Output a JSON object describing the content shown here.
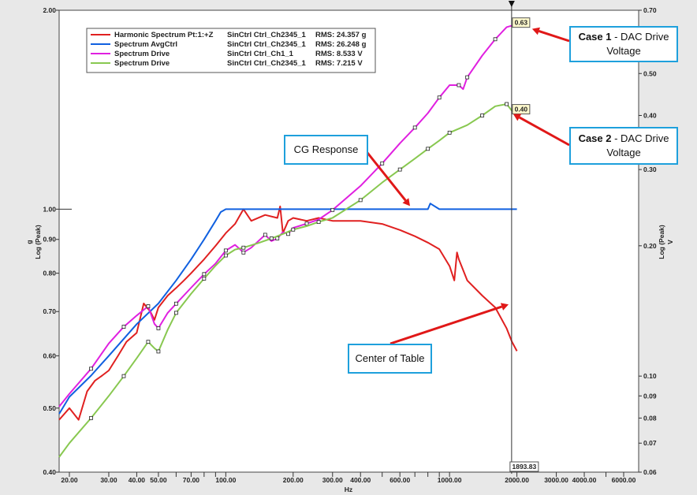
{
  "chart_data": {
    "type": "line",
    "xlabel": "Hz",
    "ylabel": [
      "g",
      "Log (Peak)"
    ],
    "y2label": [
      "Log (Peak)",
      "V"
    ],
    "x_scale": "log",
    "y_scale": "log",
    "xlim": [
      18,
      7000
    ],
    "ylim": [
      0.4,
      2.0
    ],
    "y2lim": [
      0.06,
      0.7
    ],
    "x_ticks": [
      20,
      30,
      40,
      50,
      60,
      70,
      80,
      90,
      100,
      200,
      300,
      400,
      500,
      600,
      700,
      800,
      900,
      1000,
      2000,
      3000,
      4000,
      5000,
      6000
    ],
    "x_tick_labels": [
      {
        "value": 20,
        "label": "20.00"
      },
      {
        "value": 30,
        "label": "30.00"
      },
      {
        "value": 40,
        "label": "40.00"
      },
      {
        "value": 50,
        "label": "50.00"
      },
      {
        "value": 70,
        "label": "70.00"
      },
      {
        "value": 100,
        "label": "100.00"
      },
      {
        "value": 200,
        "label": "200.00"
      },
      {
        "value": 300,
        "label": "300.00"
      },
      {
        "value": 400,
        "label": "400.00"
      },
      {
        "value": 600,
        "label": "600.00"
      },
      {
        "value": 1000,
        "label": "1000.00"
      },
      {
        "value": 2000,
        "label": "2000.00"
      },
      {
        "value": 3000,
        "label": "3000.00"
      },
      {
        "value": 4000,
        "label": "4000.00"
      },
      {
        "value": 6000,
        "label": "6000.00"
      }
    ],
    "y_tick_labels": [
      {
        "value": 2.0,
        "label": "2.00"
      },
      {
        "value": 1.0,
        "label": "1.00"
      },
      {
        "value": 0.9,
        "label": "0.90"
      },
      {
        "value": 0.8,
        "label": "0.80"
      },
      {
        "value": 0.7,
        "label": "0.70"
      },
      {
        "value": 0.6,
        "label": "0.60"
      },
      {
        "value": 0.5,
        "label": "0.50"
      },
      {
        "value": 0.4,
        "label": "0.40"
      }
    ],
    "y2_tick_labels": [
      {
        "value": 0.7,
        "label": "0.70"
      },
      {
        "value": 0.5,
        "label": "0.50"
      },
      {
        "value": 0.4,
        "label": "0.40"
      },
      {
        "value": 0.3,
        "label": "0.30"
      },
      {
        "value": 0.2,
        "label": "0.20"
      },
      {
        "value": 0.1,
        "label": "0.10"
      },
      {
        "value": 0.09,
        "label": "0.09"
      },
      {
        "value": 0.08,
        "label": "0.08"
      },
      {
        "value": 0.07,
        "label": "0.07"
      },
      {
        "value": 0.06,
        "label": "0.06"
      }
    ],
    "grid": false,
    "cursor": {
      "x": 1893.83,
      "label": "1893.83"
    },
    "cursor_values": [
      {
        "label": "0.63",
        "series": "Spectrum Drive (Ch1_1)"
      },
      {
        "label": "0.40",
        "series": "Spectrum Drive (Ch2345_1)"
      }
    ],
    "legend_position": "top-left",
    "series": [
      {
        "name": "Harmonic Spectrum Pt:1:+Z",
        "channel": "SinCtrl Ctrl_Ch2345_1",
        "rms": "RMS: 24.357 g",
        "color": "#e02020",
        "axis": "left",
        "x": [
          18,
          20,
          22,
          24,
          26,
          28,
          30,
          33,
          36,
          40,
          43,
          46,
          48,
          50,
          55,
          60,
          65,
          70,
          80,
          90,
          100,
          110,
          120,
          130,
          150,
          170,
          175,
          180,
          190,
          200,
          230,
          260,
          300,
          350,
          400,
          500,
          600,
          700,
          800,
          900,
          1000,
          1050,
          1080,
          1100,
          1200,
          1400,
          1600,
          1800,
          1900,
          2000
        ],
        "y": [
          0.48,
          0.5,
          0.48,
          0.53,
          0.55,
          0.56,
          0.57,
          0.6,
          0.63,
          0.65,
          0.72,
          0.7,
          0.68,
          0.71,
          0.74,
          0.76,
          0.78,
          0.8,
          0.84,
          0.88,
          0.92,
          0.95,
          1.0,
          0.96,
          0.98,
          0.97,
          1.01,
          0.92,
          0.96,
          0.97,
          0.96,
          0.97,
          0.96,
          0.96,
          0.96,
          0.95,
          0.93,
          0.91,
          0.89,
          0.87,
          0.82,
          0.78,
          0.86,
          0.84,
          0.78,
          0.74,
          0.71,
          0.66,
          0.63,
          0.61
        ]
      },
      {
        "name": "Spectrum AvgCtrl",
        "channel": "SinCtrl Ctrl_Ch2345_1",
        "rms": "RMS: 26.248 g",
        "color": "#1060e0",
        "axis": "left",
        "x": [
          18,
          20,
          25,
          30,
          40,
          50,
          60,
          70,
          80,
          90,
          95,
          100,
          200,
          300,
          500,
          700,
          800,
          820,
          900,
          1000,
          1200,
          1500,
          1800,
          2000
        ],
        "y": [
          0.49,
          0.52,
          0.56,
          0.6,
          0.67,
          0.72,
          0.78,
          0.84,
          0.9,
          0.96,
          0.99,
          1.0,
          1.0,
          1.0,
          1.0,
          1.0,
          1.0,
          1.02,
          1.0,
          1.0,
          1.0,
          1.0,
          1.0,
          1.0
        ]
      },
      {
        "name": "Spectrum Drive",
        "channel": "SinCtrl Ctrl_Ch1_1",
        "rms": "RMS: 8.533 V",
        "color": "#e020e0",
        "axis": "right",
        "x": [
          18,
          20,
          25,
          30,
          35,
          40,
          45,
          48,
          50,
          55,
          60,
          70,
          80,
          90,
          100,
          110,
          120,
          130,
          150,
          160,
          170,
          180,
          190,
          200,
          230,
          260,
          300,
          400,
          500,
          600,
          700,
          800,
          900,
          1000,
          1100,
          1150,
          1200,
          1400,
          1600,
          1800,
          2000
        ],
        "y": [
          0.085,
          0.091,
          0.104,
          0.119,
          0.13,
          0.138,
          0.145,
          0.132,
          0.129,
          0.14,
          0.147,
          0.16,
          0.172,
          0.182,
          0.195,
          0.201,
          0.193,
          0.198,
          0.212,
          0.205,
          0.208,
          0.215,
          0.213,
          0.22,
          0.225,
          0.23,
          0.242,
          0.275,
          0.31,
          0.345,
          0.375,
          0.405,
          0.44,
          0.47,
          0.47,
          0.46,
          0.49,
          0.55,
          0.6,
          0.64,
          0.65
        ]
      },
      {
        "name": "Spectrum Drive",
        "channel": "SinCtrl Ctrl_Ch2345_1",
        "rms": "RMS: 7.215 V",
        "color": "#88c850",
        "axis": "right",
        "x": [
          18,
          20,
          25,
          30,
          35,
          40,
          45,
          48,
          50,
          55,
          60,
          70,
          80,
          90,
          100,
          110,
          120,
          140,
          160,
          180,
          200,
          230,
          260,
          300,
          400,
          500,
          600,
          700,
          800,
          900,
          1000,
          1200,
          1400,
          1600,
          1800,
          1900,
          2000
        ],
        "y": [
          0.065,
          0.07,
          0.08,
          0.09,
          0.1,
          0.11,
          0.12,
          0.116,
          0.114,
          0.128,
          0.14,
          0.155,
          0.168,
          0.18,
          0.19,
          0.196,
          0.198,
          0.203,
          0.208,
          0.213,
          0.218,
          0.222,
          0.227,
          0.232,
          0.255,
          0.28,
          0.3,
          0.318,
          0.335,
          0.35,
          0.365,
          0.38,
          0.4,
          0.42,
          0.425,
          0.41,
          0.41
        ]
      }
    ]
  },
  "callouts": {
    "case1": {
      "bold": "Case 1",
      "rest": " - DAC Drive",
      "line2": "Voltage"
    },
    "case2": {
      "bold": "Case 2",
      "rest": " - DAC Drive",
      "line2": "Voltage"
    },
    "cg": "CG Response",
    "center": "Center of Table"
  },
  "colors": {
    "background": "#e8e8e8",
    "plot": "#ffffff",
    "callout_border": "#1ea0dc",
    "arrow": "#e01818"
  }
}
